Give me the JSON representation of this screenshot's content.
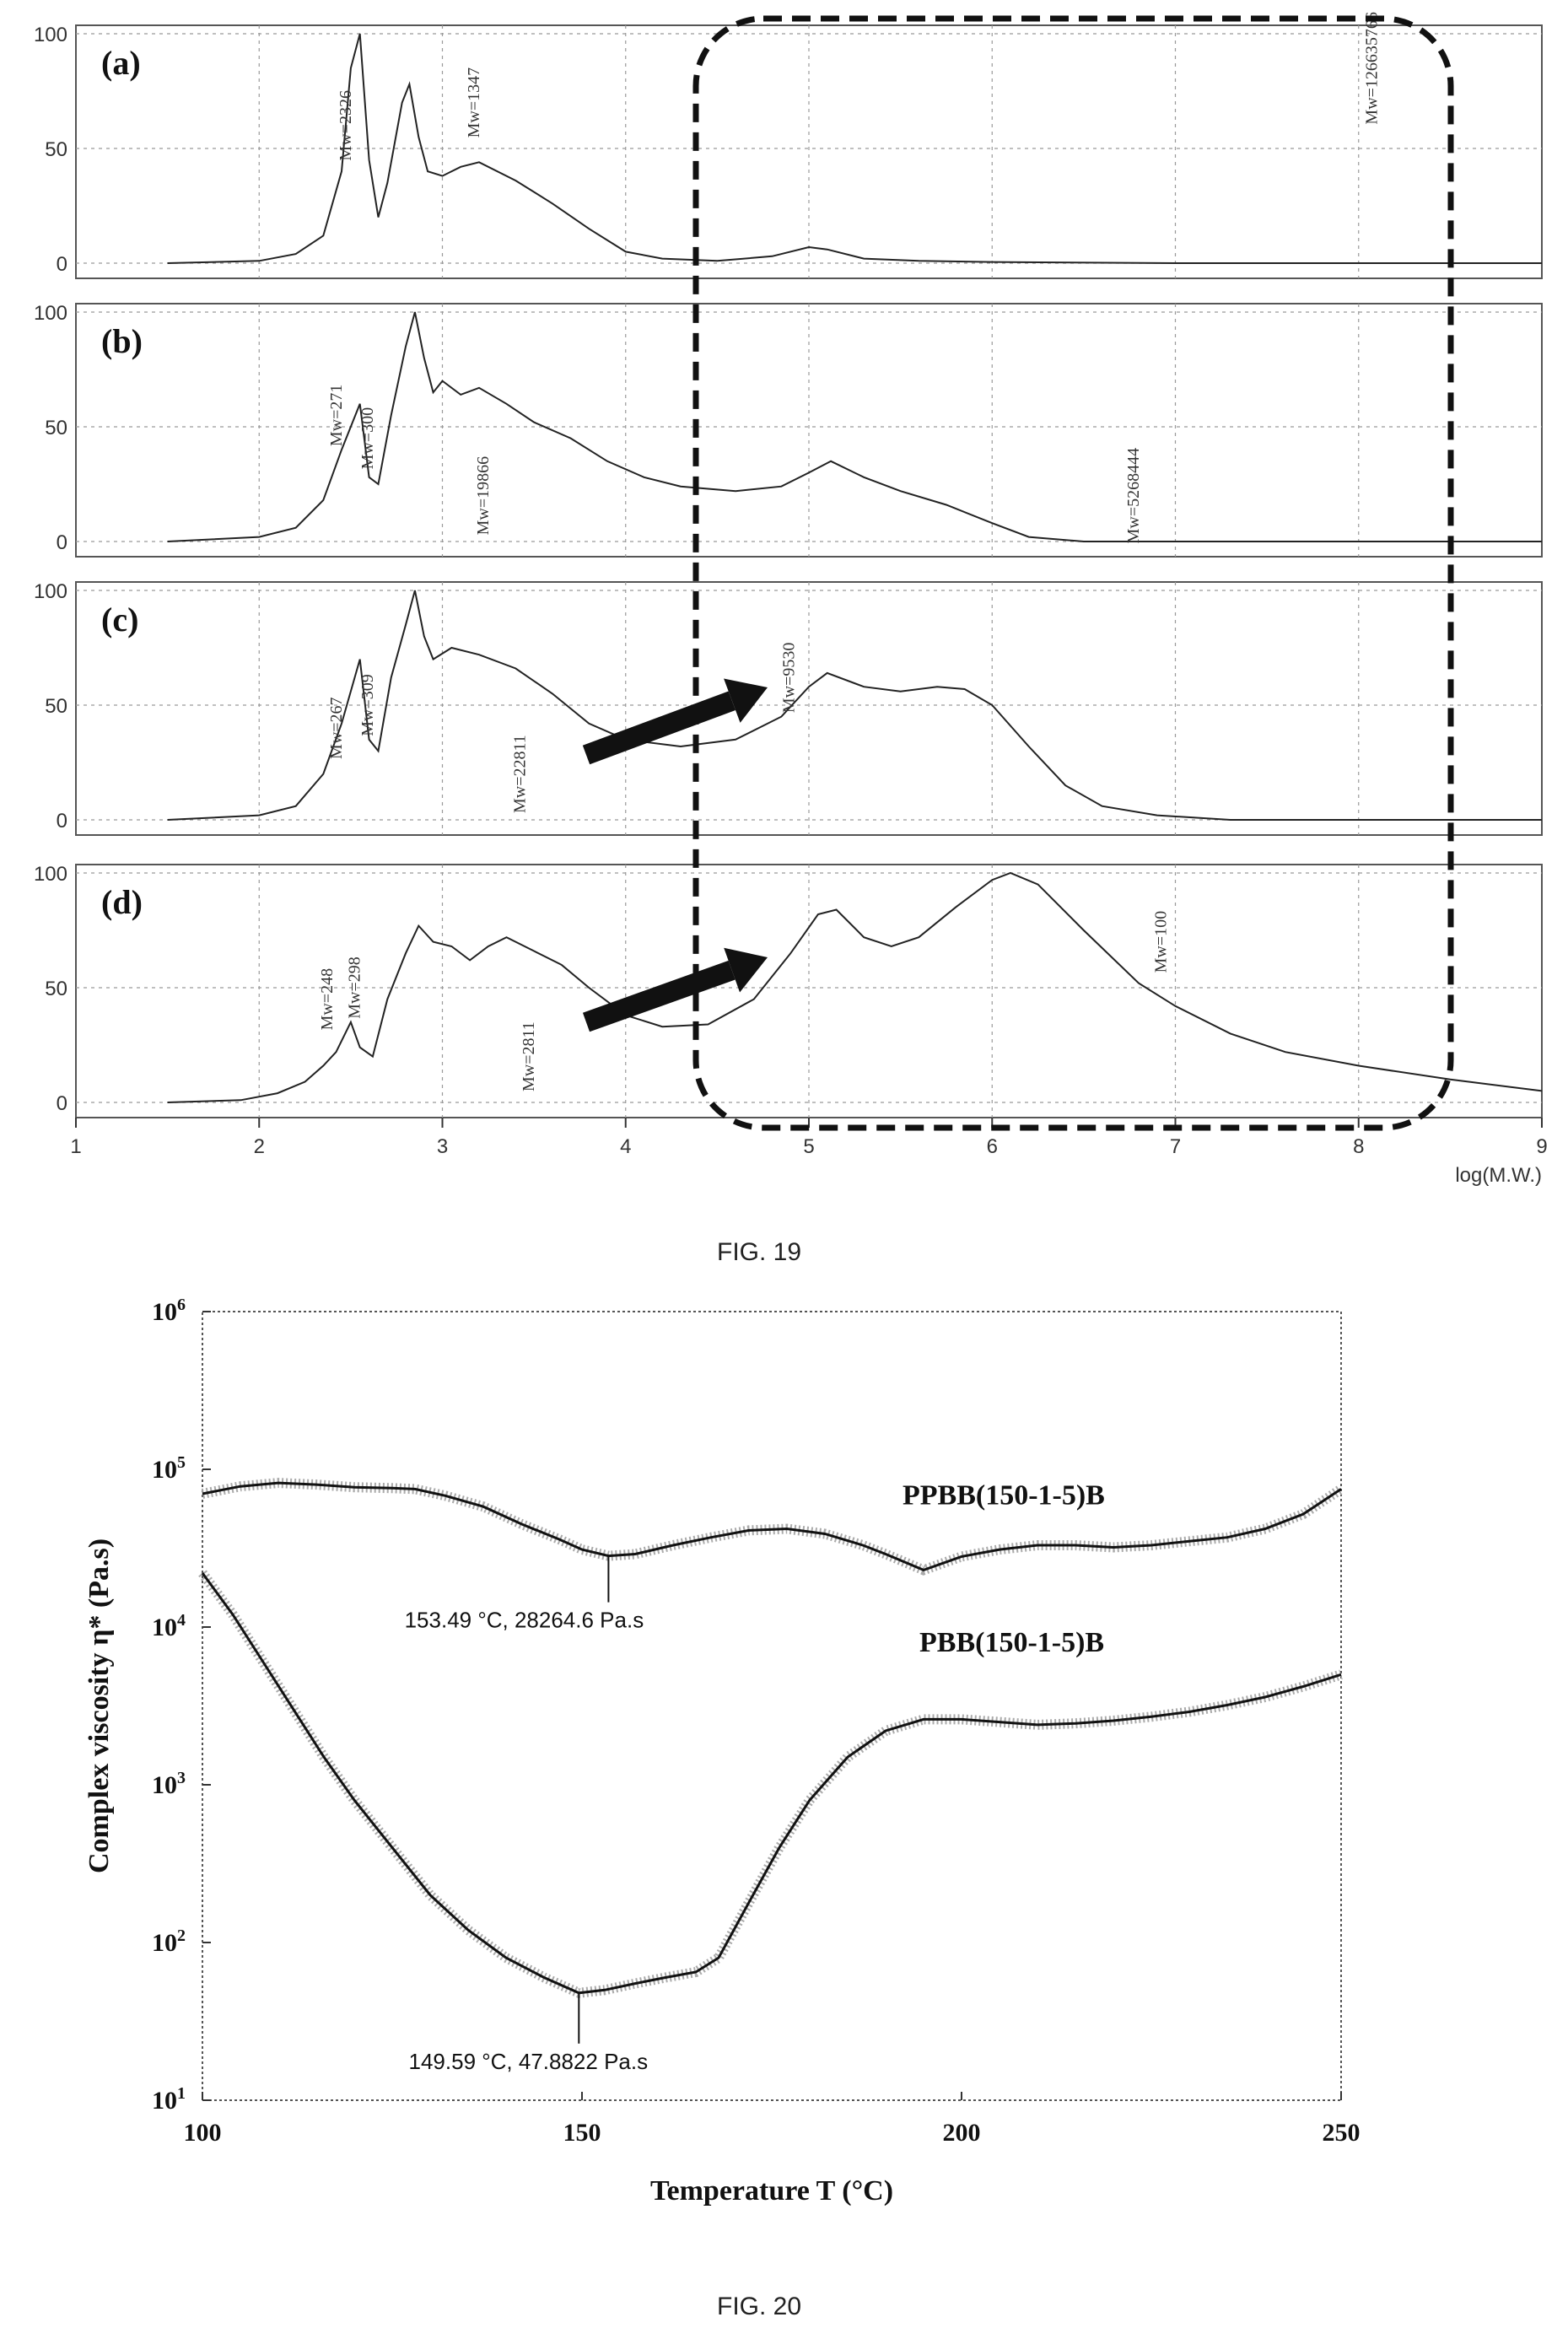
{
  "figures": [
    {
      "caption": "FIG. 19"
    },
    {
      "caption": "FIG. 20"
    }
  ],
  "chart_data": [
    {
      "type": "line",
      "figure": "FIG. 19",
      "xlabel": "log(M.W.)",
      "xlim": [
        1,
        9
      ],
      "ylim": [
        0,
        100
      ],
      "x_ticks": [
        "1",
        "2",
        "3",
        "4",
        "5",
        "6",
        "7",
        "8",
        "9"
      ],
      "y_ticks": [
        "0",
        "50",
        "100"
      ],
      "grid": true,
      "panels": [
        {
          "label": "(a)",
          "points": [
            [
              1.5,
              0
            ],
            [
              2,
              1
            ],
            [
              2.2,
              4
            ],
            [
              2.35,
              12
            ],
            [
              2.45,
              40
            ],
            [
              2.5,
              85
            ],
            [
              2.55,
              100
            ],
            [
              2.6,
              45
            ],
            [
              2.65,
              20
            ],
            [
              2.7,
              35
            ],
            [
              2.78,
              70
            ],
            [
              2.82,
              78
            ],
            [
              2.87,
              55
            ],
            [
              2.92,
              40
            ],
            [
              3.0,
              38
            ],
            [
              3.1,
              42
            ],
            [
              3.2,
              44
            ],
            [
              3.4,
              36
            ],
            [
              3.6,
              26
            ],
            [
              3.8,
              15
            ],
            [
              4.0,
              5
            ],
            [
              4.2,
              2
            ],
            [
              4.5,
              1
            ],
            [
              4.8,
              3
            ],
            [
              5.0,
              7
            ],
            [
              5.1,
              6
            ],
            [
              5.3,
              2
            ],
            [
              5.6,
              1
            ],
            [
              6,
              0.5
            ],
            [
              7,
              0
            ],
            [
              9,
              0
            ]
          ],
          "annotations": [
            "Mw=2326",
            "Mw=1347",
            "Mw=126635766"
          ]
        },
        {
          "label": "(b)",
          "points": [
            [
              1.5,
              0
            ],
            [
              2,
              2
            ],
            [
              2.2,
              6
            ],
            [
              2.35,
              18
            ],
            [
              2.45,
              40
            ],
            [
              2.55,
              60
            ],
            [
              2.6,
              28
            ],
            [
              2.65,
              25
            ],
            [
              2.72,
              55
            ],
            [
              2.8,
              85
            ],
            [
              2.85,
              100
            ],
            [
              2.9,
              80
            ],
            [
              2.95,
              65
            ],
            [
              3.0,
              70
            ],
            [
              3.1,
              64
            ],
            [
              3.2,
              67
            ],
            [
              3.35,
              60
            ],
            [
              3.5,
              52
            ],
            [
              3.7,
              45
            ],
            [
              3.9,
              35
            ],
            [
              4.1,
              28
            ],
            [
              4.3,
              24
            ],
            [
              4.6,
              22
            ],
            [
              4.85,
              24
            ],
            [
              5.0,
              30
            ],
            [
              5.12,
              35
            ],
            [
              5.3,
              28
            ],
            [
              5.5,
              22
            ],
            [
              5.75,
              16
            ],
            [
              6.0,
              8
            ],
            [
              6.2,
              2
            ],
            [
              6.5,
              0
            ],
            [
              9,
              0
            ]
          ],
          "annotations": [
            "Mw=271",
            "Mw=300",
            "Mw=19866",
            "Mw=5268444"
          ]
        },
        {
          "label": "(c)",
          "points": [
            [
              1.5,
              0
            ],
            [
              2,
              2
            ],
            [
              2.2,
              6
            ],
            [
              2.35,
              20
            ],
            [
              2.45,
              42
            ],
            [
              2.55,
              70
            ],
            [
              2.6,
              35
            ],
            [
              2.65,
              30
            ],
            [
              2.72,
              62
            ],
            [
              2.8,
              85
            ],
            [
              2.85,
              100
            ],
            [
              2.9,
              80
            ],
            [
              2.95,
              70
            ],
            [
              3.05,
              75
            ],
            [
              3.2,
              72
            ],
            [
              3.4,
              66
            ],
            [
              3.6,
              55
            ],
            [
              3.8,
              42
            ],
            [
              4.0,
              35
            ],
            [
              4.3,
              32
            ],
            [
              4.6,
              35
            ],
            [
              4.85,
              45
            ],
            [
              5.0,
              58
            ],
            [
              5.1,
              64
            ],
            [
              5.3,
              58
            ],
            [
              5.5,
              56
            ],
            [
              5.7,
              58
            ],
            [
              5.85,
              57
            ],
            [
              6.0,
              50
            ],
            [
              6.2,
              32
            ],
            [
              6.4,
              15
            ],
            [
              6.6,
              6
            ],
            [
              6.9,
              2
            ],
            [
              7.3,
              0
            ],
            [
              9,
              0
            ]
          ],
          "annotations": [
            "Mw=267",
            "Mw=309",
            "Mw=22811",
            "Mw=9530"
          ]
        },
        {
          "label": "(d)",
          "points": [
            [
              1.5,
              0
            ],
            [
              1.9,
              1
            ],
            [
              2.1,
              4
            ],
            [
              2.25,
              9
            ],
            [
              2.35,
              16
            ],
            [
              2.42,
              22
            ],
            [
              2.5,
              35
            ],
            [
              2.55,
              24
            ],
            [
              2.62,
              20
            ],
            [
              2.7,
              45
            ],
            [
              2.8,
              65
            ],
            [
              2.87,
              77
            ],
            [
              2.95,
              70
            ],
            [
              3.05,
              68
            ],
            [
              3.15,
              62
            ],
            [
              3.25,
              68
            ],
            [
              3.35,
              72
            ],
            [
              3.5,
              66
            ],
            [
              3.65,
              60
            ],
            [
              3.8,
              50
            ],
            [
              4.0,
              38
            ],
            [
              4.2,
              33
            ],
            [
              4.45,
              34
            ],
            [
              4.7,
              45
            ],
            [
              4.9,
              65
            ],
            [
              5.05,
              82
            ],
            [
              5.15,
              84
            ],
            [
              5.3,
              72
            ],
            [
              5.45,
              68
            ],
            [
              5.6,
              72
            ],
            [
              5.8,
              85
            ],
            [
              6.0,
              97
            ],
            [
              6.1,
              100
            ],
            [
              6.25,
              95
            ],
            [
              6.5,
              75
            ],
            [
              6.8,
              52
            ],
            [
              7.0,
              42
            ],
            [
              7.3,
              30
            ],
            [
              7.6,
              22
            ],
            [
              8.0,
              16
            ],
            [
              8.5,
              10
            ],
            [
              9,
              5
            ]
          ],
          "annotations": [
            "Mw=248",
            "Mw=298",
            "Mw=2811",
            "Mw=100"
          ]
        }
      ]
    },
    {
      "type": "line",
      "figure": "FIG. 20",
      "xlabel": "Temperature T (°C)",
      "ylabel": "Complex viscosity η* (Pa.s)",
      "xlim": [
        100,
        250
      ],
      "ylim": [
        10,
        1000000
      ],
      "log_y": true,
      "x_ticks": [
        "100",
        "150",
        "200",
        "250"
      ],
      "y_ticks": [
        "10",
        "100",
        "1000",
        "10000",
        "100000",
        "1000000"
      ],
      "series": [
        {
          "name": "PPBB(150-1-5)B",
          "x": [
            100,
            105,
            110,
            115,
            120,
            125,
            128,
            132,
            137,
            142,
            147,
            150,
            153.49,
            157,
            162,
            167,
            172,
            177,
            182,
            187,
            190,
            195,
            200,
            205,
            210,
            215,
            220,
            225,
            230,
            235,
            240,
            245,
            250
          ],
          "y": [
            70000,
            78000,
            82000,
            80000,
            77000,
            76000,
            75000,
            68000,
            58000,
            45000,
            36000,
            31000,
            28264.6,
            29000,
            33000,
            37000,
            41000,
            42000,
            39000,
            33000,
            29000,
            23000,
            28000,
            31000,
            33000,
            33000,
            32000,
            33000,
            35000,
            37000,
            42000,
            52000,
            75000
          ]
        },
        {
          "name": "PBB(150-1-5)B",
          "x": [
            100,
            104,
            108,
            112,
            116,
            120,
            125,
            130,
            135,
            140,
            145,
            149.59,
            153,
            157,
            161,
            165,
            168,
            172,
            176,
            180,
            185,
            190,
            195,
            200,
            205,
            210,
            215,
            220,
            225,
            230,
            235,
            240,
            245,
            250
          ],
          "y": [
            22000,
            12000,
            6000,
            3000,
            1500,
            800,
            400,
            200,
            120,
            80,
            60,
            47.8822,
            50,
            55,
            60,
            65,
            80,
            180,
            400,
            800,
            1500,
            2200,
            2600,
            2600,
            2500,
            2400,
            2450,
            2550,
            2700,
            2900,
            3200,
            3600,
            4200,
            5000
          ]
        }
      ],
      "annotations": [
        {
          "text": "153.49 °C, 28264.6 Pa.s",
          "x": 153.49,
          "y": 28264.6
        },
        {
          "text": "149.59 °C, 47.8822 Pa.s",
          "x": 149.59,
          "y": 47.8822
        }
      ]
    }
  ]
}
